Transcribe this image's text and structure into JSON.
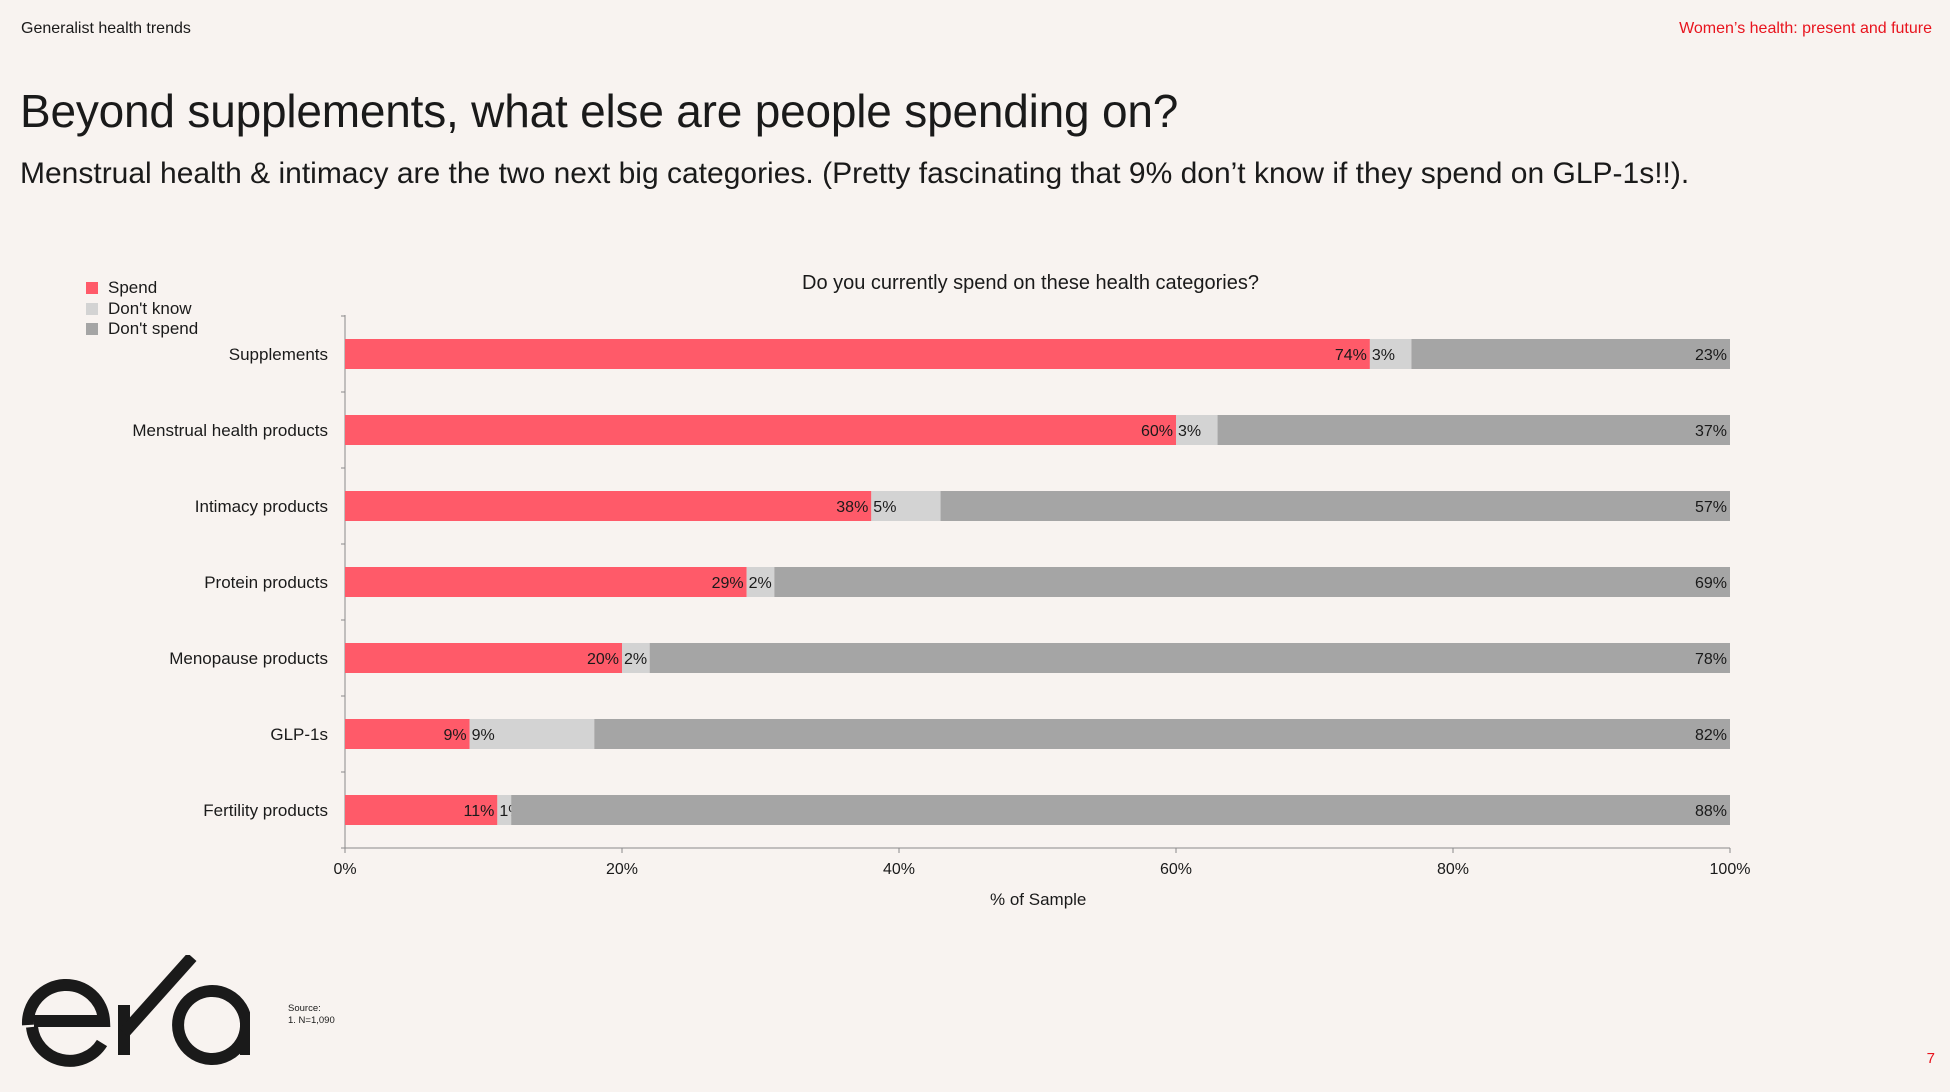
{
  "header": {
    "left": "Generalist health trends",
    "right": "Women’s health: present and future"
  },
  "title": "Beyond supplements, what else are people spending on?",
  "subtitle": "Menstrual health & intimacy are the two next big categories. (Pretty fascinating that 9% don’t know if they spend on GLP-1s!!).",
  "source": {
    "label": "Source:",
    "note": "1.    N=1,090"
  },
  "page_number": "7",
  "logo_text": "eka",
  "colors": {
    "spend": "#ff5a69",
    "dont_know": "#d3d3d3",
    "dont_spend": "#a5a5a5",
    "accent": "#e8141e"
  },
  "chart_data": {
    "type": "bar",
    "orientation": "horizontal",
    "stacked": true,
    "title": "Do you currently spend on these health categories?",
    "xlabel": "% of Sample",
    "ylabel": "",
    "xlim": [
      0,
      100
    ],
    "xticks": [
      "0%",
      "20%",
      "40%",
      "60%",
      "80%",
      "100%"
    ],
    "legend_position": "top-left",
    "categories": [
      "Supplements",
      "Menstrual health products",
      "Intimacy products",
      "Protein products",
      "Menopause products",
      "GLP-1s",
      "Fertility products"
    ],
    "series": [
      {
        "name": "Spend",
        "values": [
          74,
          60,
          38,
          29,
          20,
          9,
          11
        ],
        "labels": [
          "74%",
          "60%",
          "38%",
          "29%",
          "20%",
          "9%",
          "11%"
        ]
      },
      {
        "name": "Don't know",
        "values": [
          3,
          3,
          5,
          2,
          2,
          9,
          1
        ],
        "labels": [
          "3%",
          "3%",
          "5%",
          "2%",
          "2%",
          "9%",
          "1%"
        ]
      },
      {
        "name": "Don't spend",
        "values": [
          23,
          37,
          57,
          69,
          78,
          82,
          88
        ],
        "labels": [
          "23%",
          "37%",
          "57%",
          "69%",
          "78%",
          "82%",
          "88%"
        ]
      }
    ]
  }
}
